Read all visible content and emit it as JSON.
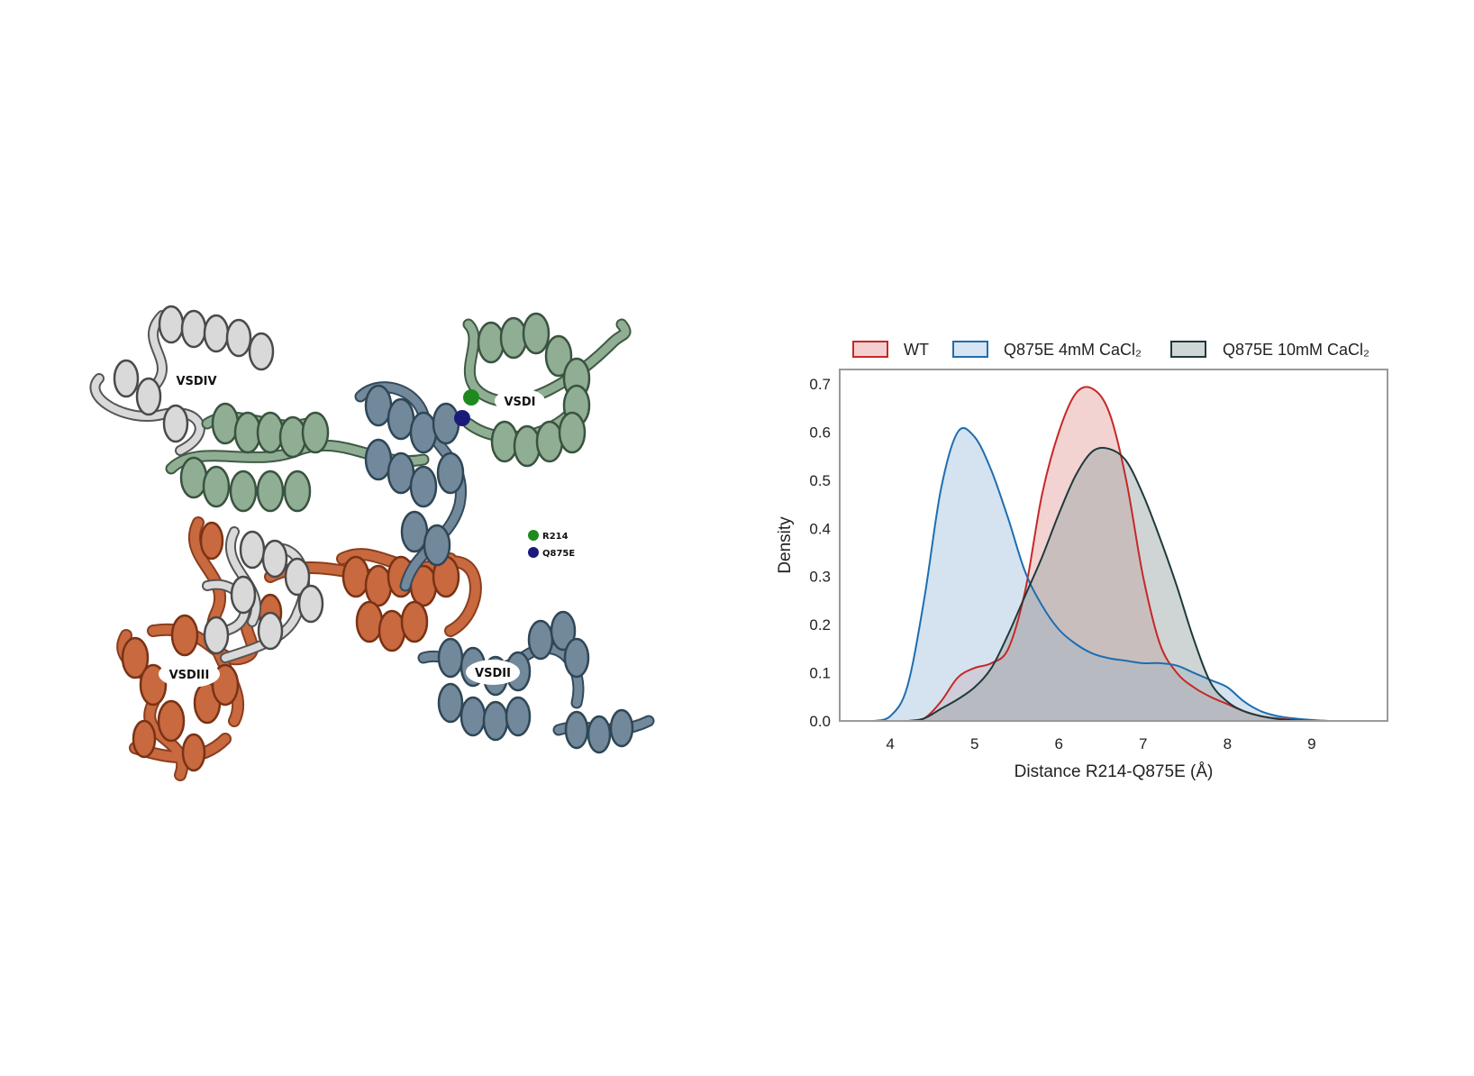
{
  "structure_panel": {
    "domain_labels": [
      "VSDIV",
      "VSDI",
      "VSDIII",
      "VSDII"
    ],
    "legend": [
      {
        "label": "R214",
        "color": "#1e8a1e"
      },
      {
        "label": "Q875E",
        "color": "#1a1a7a"
      }
    ],
    "domain_colors": {
      "VSDI": "#8aaa8f",
      "VSDII": "#6d8699",
      "VSDIII": "#c0653f",
      "VSDIV": "#d6d6d6"
    }
  },
  "chart_data": {
    "type": "area",
    "subtype": "kde-density",
    "xlabel": "Distance R214-Q875E (Å)",
    "ylabel": "Density",
    "xlim": [
      3.4,
      9.9
    ],
    "ylim": [
      0,
      0.73
    ],
    "xticks": [
      "4",
      "5",
      "6",
      "7",
      "8",
      "9"
    ],
    "yticks": [
      "0.0",
      "0.1",
      "0.2",
      "0.3",
      "0.4",
      "0.5",
      "0.6",
      "0.7"
    ],
    "grid": false,
    "legend_position": "top",
    "x": [
      3.6,
      3.8,
      4.0,
      4.2,
      4.4,
      4.6,
      4.8,
      5.0,
      5.2,
      5.4,
      5.6,
      5.8,
      6.0,
      6.2,
      6.4,
      6.6,
      6.8,
      7.0,
      7.2,
      7.4,
      7.6,
      7.8,
      8.0,
      8.2,
      8.4,
      8.6,
      8.8,
      9.0,
      9.2,
      9.4,
      9.6,
      9.8
    ],
    "series": [
      {
        "name": "WT",
        "stroke": "#c62828",
        "fill": "#e8a5a5",
        "values": [
          0.0,
          0.0,
          0.0,
          0.0,
          0.005,
          0.04,
          0.09,
          0.11,
          0.12,
          0.15,
          0.27,
          0.47,
          0.6,
          0.68,
          0.69,
          0.64,
          0.5,
          0.3,
          0.16,
          0.1,
          0.07,
          0.05,
          0.035,
          0.02,
          0.01,
          0.005,
          0.002,
          0.001,
          0.0,
          0.0,
          0.0,
          0.0
        ]
      },
      {
        "name": "Q875E 4mM CaCl₂",
        "stroke": "#1f6db0",
        "fill": "#a9c7e0",
        "values": [
          0.0,
          0.0,
          0.01,
          0.07,
          0.25,
          0.48,
          0.6,
          0.59,
          0.52,
          0.42,
          0.31,
          0.24,
          0.19,
          0.16,
          0.14,
          0.13,
          0.125,
          0.12,
          0.12,
          0.115,
          0.1,
          0.085,
          0.07,
          0.04,
          0.02,
          0.01,
          0.005,
          0.002,
          0.0,
          0.0,
          0.0,
          0.0
        ]
      },
      {
        "name": "Q875E 10mM CaCl₂",
        "stroke": "#1f3a3a",
        "fill": "#9fa9a9",
        "values": [
          0.0,
          0.0,
          0.0,
          0.0,
          0.005,
          0.025,
          0.045,
          0.07,
          0.11,
          0.18,
          0.26,
          0.34,
          0.43,
          0.51,
          0.56,
          0.565,
          0.54,
          0.47,
          0.38,
          0.28,
          0.17,
          0.08,
          0.04,
          0.02,
          0.01,
          0.004,
          0.001,
          0.0,
          0.0,
          0.0,
          0.0,
          0.0
        ]
      }
    ]
  }
}
